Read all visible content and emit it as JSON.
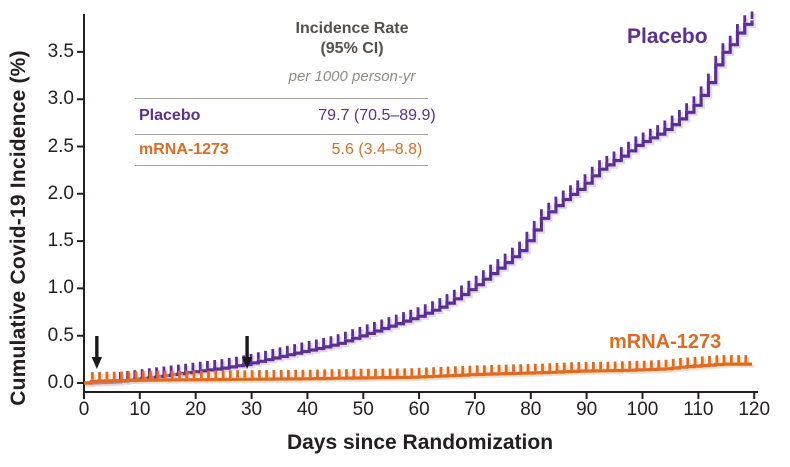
{
  "axis_color": "#231F20",
  "arrow_color": "#1A1A1A",
  "chart_data": {
    "type": "line",
    "variant": "kaplan_meier_cumulative_incidence_step",
    "title": "",
    "xlabel": "Days since Randomization",
    "ylabel": "Cumulative Covid-19 Incidence (%)",
    "xlim": [
      0,
      120
    ],
    "ylim": [
      0,
      3.9
    ],
    "grid": false,
    "x_ticks": [
      0,
      10,
      20,
      30,
      40,
      50,
      60,
      70,
      80,
      90,
      100,
      110,
      120
    ],
    "y_ticks": [
      0,
      0.5,
      1,
      1.5,
      2,
      2.5,
      3,
      3.5
    ],
    "y_tick_labels": [
      "0.0",
      "0.5",
      "1.0",
      "1.5",
      "2.0",
      "2.5",
      "3.0",
      "3.5"
    ],
    "dose_arrow_days": [
      2.3,
      29.2
    ],
    "censor_tick_interval_days": 1.3,
    "series": [
      {
        "name": "Placebo",
        "color": "#5B3092",
        "shadow_color": "#CBB7DF",
        "tick_start_day": 6.5,
        "points": [
          [
            0,
            0
          ],
          [
            5,
            0.01
          ],
          [
            9,
            0.04
          ],
          [
            13,
            0.07
          ],
          [
            17,
            0.1
          ],
          [
            21,
            0.13
          ],
          [
            25,
            0.16
          ],
          [
            29,
            0.2
          ],
          [
            32,
            0.24
          ],
          [
            35,
            0.28
          ],
          [
            38,
            0.32
          ],
          [
            42,
            0.37
          ],
          [
            45,
            0.41
          ],
          [
            48,
            0.47
          ],
          [
            51,
            0.53
          ],
          [
            54,
            0.59
          ],
          [
            57,
            0.65
          ],
          [
            60,
            0.71
          ],
          [
            62,
            0.76
          ],
          [
            64,
            0.81
          ],
          [
            66,
            0.88
          ],
          [
            68,
            0.95
          ],
          [
            70,
            1.03
          ],
          [
            72,
            1.12
          ],
          [
            74,
            1.21
          ],
          [
            76,
            1.3
          ],
          [
            78,
            1.4
          ],
          [
            80,
            1.56
          ],
          [
            82,
            1.75
          ],
          [
            84,
            1.85
          ],
          [
            86,
            1.95
          ],
          [
            89,
            2.07
          ],
          [
            92,
            2.25
          ],
          [
            96,
            2.39
          ],
          [
            99,
            2.52
          ],
          [
            103,
            2.64
          ],
          [
            106,
            2.76
          ],
          [
            109,
            2.92
          ],
          [
            110,
            3.0
          ],
          [
            111,
            3.08
          ],
          [
            112,
            3.2
          ],
          [
            113,
            3.35
          ],
          [
            114,
            3.48
          ],
          [
            115,
            3.52
          ],
          [
            116,
            3.6
          ],
          [
            117,
            3.7
          ],
          [
            118,
            3.78
          ],
          [
            119,
            3.82
          ],
          [
            120,
            3.84
          ]
        ]
      },
      {
        "name": "mRNA-1273",
        "color": "#DE6B21",
        "shadow_color": "#F4C29A",
        "tick_start_day": 1.5,
        "points": [
          [
            0,
            0
          ],
          [
            1.5,
            0.02
          ],
          [
            10,
            0.03
          ],
          [
            20,
            0.035
          ],
          [
            30,
            0.04
          ],
          [
            40,
            0.045
          ],
          [
            50,
            0.055
          ],
          [
            58,
            0.06
          ],
          [
            64,
            0.075
          ],
          [
            70,
            0.09
          ],
          [
            76,
            0.1
          ],
          [
            82,
            0.11
          ],
          [
            88,
            0.125
          ],
          [
            94,
            0.13
          ],
          [
            100,
            0.14
          ],
          [
            104,
            0.15
          ],
          [
            107,
            0.17
          ],
          [
            112,
            0.19
          ],
          [
            114,
            0.2
          ],
          [
            120,
            0.2
          ]
        ]
      }
    ]
  },
  "table": {
    "header_line1": "Incidence Rate",
    "header_line2": "(95% CI)",
    "subheader": "per 1000 person-yr",
    "rows": [
      {
        "label": "Placebo",
        "value": "79.7 (70.5–89.9)",
        "color": "#5B3092"
      },
      {
        "label": "mRNA-1273",
        "value": "5.6 (3.4–8.8)",
        "color": "#DE6B21"
      }
    ]
  }
}
